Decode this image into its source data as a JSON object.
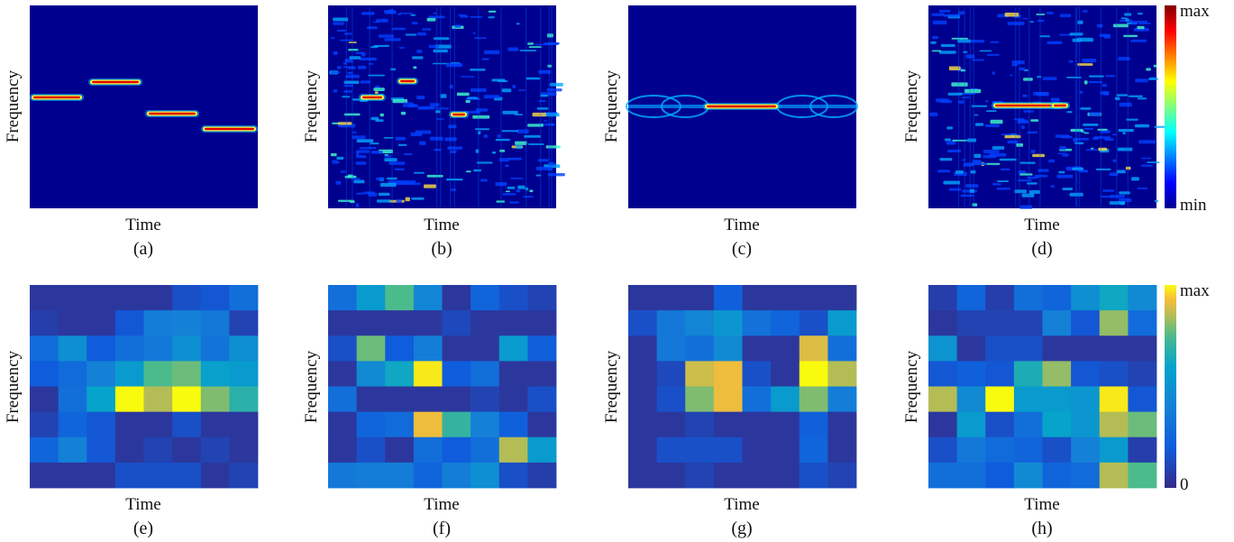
{
  "chart_data": {
    "type": "heatmap",
    "panels": [
      {
        "id": "a",
        "label": "(a)",
        "xlabel": "Time",
        "ylabel": "Frequency",
        "kind": "tf",
        "pattern": "steps"
      },
      {
        "id": "b",
        "label": "(b)",
        "xlabel": "Time",
        "ylabel": "Frequency",
        "kind": "tf",
        "pattern": "noisy"
      },
      {
        "id": "c",
        "label": "(c)",
        "xlabel": "Time",
        "ylabel": "Frequency",
        "kind": "tf",
        "pattern": "line"
      },
      {
        "id": "d",
        "label": "(d)",
        "xlabel": "Time",
        "ylabel": "Frequency",
        "kind": "tf",
        "pattern": "noisy-line"
      },
      {
        "id": "e",
        "label": "(e)",
        "xlabel": "Time",
        "ylabel": "Frequency",
        "kind": "grid",
        "values": [
          [
            0.05,
            0.05,
            0.05,
            0.05,
            0.05,
            0.15,
            0.18,
            0.3
          ],
          [
            0.08,
            0.05,
            0.05,
            0.18,
            0.38,
            0.4,
            0.35,
            0.1
          ],
          [
            0.28,
            0.48,
            0.2,
            0.3,
            0.35,
            0.48,
            0.33,
            0.48
          ],
          [
            0.2,
            0.28,
            0.4,
            0.55,
            0.75,
            0.78,
            0.58,
            0.55
          ],
          [
            0.05,
            0.3,
            0.6,
            1.0,
            0.85,
            1.0,
            0.8,
            0.68
          ],
          [
            0.1,
            0.25,
            0.18,
            0.05,
            0.05,
            0.15,
            0.05,
            0.05
          ],
          [
            0.25,
            0.4,
            0.18,
            0.05,
            0.1,
            0.05,
            0.1,
            0.05
          ],
          [
            0.05,
            0.05,
            0.05,
            0.15,
            0.15,
            0.15,
            0.05,
            0.1
          ]
        ]
      },
      {
        "id": "f",
        "label": "(f)",
        "xlabel": "Time",
        "ylabel": "Frequency",
        "kind": "grid",
        "values": [
          [
            0.3,
            0.55,
            0.75,
            0.42,
            0.05,
            0.25,
            0.15,
            0.1
          ],
          [
            0.05,
            0.05,
            0.05,
            0.05,
            0.12,
            0.05,
            0.05,
            0.05
          ],
          [
            0.15,
            0.78,
            0.2,
            0.38,
            0.05,
            0.05,
            0.55,
            0.22
          ],
          [
            0.05,
            0.45,
            0.62,
            0.98,
            0.2,
            0.3,
            0.05,
            0.05
          ],
          [
            0.3,
            0.05,
            0.05,
            0.05,
            0.05,
            0.1,
            0.05,
            0.15
          ],
          [
            0.05,
            0.25,
            0.28,
            0.92,
            0.7,
            0.4,
            0.22,
            0.05
          ],
          [
            0.05,
            0.15,
            0.05,
            0.3,
            0.2,
            0.3,
            0.85,
            0.55
          ],
          [
            0.35,
            0.38,
            0.38,
            0.25,
            0.38,
            0.48,
            0.15,
            0.08
          ]
        ]
      },
      {
        "id": "g",
        "label": "(g)",
        "xlabel": "Time",
        "ylabel": "Frequency",
        "kind": "grid",
        "values": [
          [
            0.05,
            0.05,
            0.05,
            0.22,
            0.05,
            0.05,
            0.05,
            0.05
          ],
          [
            0.15,
            0.35,
            0.42,
            0.52,
            0.32,
            0.25,
            0.15,
            0.55
          ],
          [
            0.05,
            0.35,
            0.3,
            0.45,
            0.05,
            0.05,
            0.9,
            0.3
          ],
          [
            0.05,
            0.12,
            0.88,
            0.92,
            0.15,
            0.05,
            1.0,
            0.85
          ],
          [
            0.05,
            0.15,
            0.8,
            0.92,
            0.3,
            0.55,
            0.8,
            0.38
          ],
          [
            0.05,
            0.05,
            0.1,
            0.05,
            0.05,
            0.05,
            0.22,
            0.05
          ],
          [
            0.05,
            0.15,
            0.15,
            0.15,
            0.05,
            0.05,
            0.25,
            0.05
          ],
          [
            0.05,
            0.05,
            0.1,
            0.05,
            0.05,
            0.05,
            0.15,
            0.1
          ]
        ]
      },
      {
        "id": "h",
        "label": "(h)",
        "xlabel": "Time",
        "ylabel": "Frequency",
        "kind": "grid",
        "values": [
          [
            0.08,
            0.25,
            0.08,
            0.3,
            0.25,
            0.48,
            0.62,
            0.45
          ],
          [
            0.05,
            0.1,
            0.1,
            0.1,
            0.4,
            0.18,
            0.82,
            0.28
          ],
          [
            0.5,
            0.05,
            0.15,
            0.15,
            0.05,
            0.05,
            0.05,
            0.05
          ],
          [
            0.18,
            0.22,
            0.18,
            0.65,
            0.82,
            0.18,
            0.15,
            0.1
          ],
          [
            0.85,
            0.45,
            1.0,
            0.55,
            0.55,
            0.52,
            0.98,
            0.18
          ],
          [
            0.05,
            0.55,
            0.15,
            0.3,
            0.6,
            0.52,
            0.85,
            0.78
          ],
          [
            0.15,
            0.35,
            0.28,
            0.25,
            0.15,
            0.4,
            0.55,
            0.08
          ],
          [
            0.3,
            0.3,
            0.2,
            0.45,
            0.25,
            0.28,
            0.85,
            0.75
          ]
        ]
      }
    ],
    "colorbars": [
      {
        "id": "top",
        "colormap": "jet",
        "max_label": "max",
        "min_label": "min"
      },
      {
        "id": "bottom",
        "colormap": "parula",
        "max_label": "max",
        "min_label": "0"
      }
    ]
  }
}
